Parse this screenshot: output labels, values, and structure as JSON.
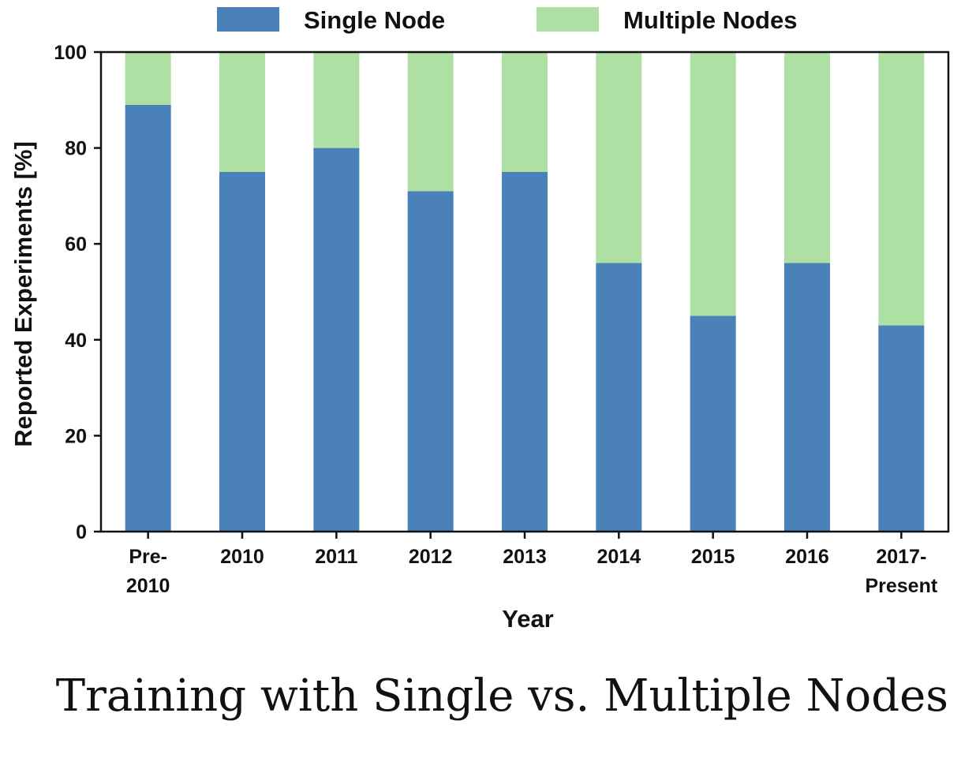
{
  "caption": "Training with Single vs. Multiple Nodes",
  "colors": {
    "single": "#4a81b8",
    "multiple": "#aee0a4"
  },
  "chart_data": {
    "type": "bar",
    "stacked": true,
    "categories": [
      [
        "Pre-",
        "2010"
      ],
      [
        "2010"
      ],
      [
        "2011"
      ],
      [
        "2012"
      ],
      [
        "2013"
      ],
      [
        "2014"
      ],
      [
        "2015"
      ],
      [
        "2016"
      ],
      [
        "2017-",
        "Present"
      ]
    ],
    "series": [
      {
        "name": "Single Node",
        "values": [
          89,
          75,
          80,
          71,
          75,
          56,
          45,
          56,
          43
        ]
      },
      {
        "name": "Multiple Nodes",
        "values": [
          11,
          25,
          20,
          29,
          25,
          44,
          55,
          44,
          57
        ]
      }
    ],
    "xlabel": "Year",
    "ylabel": "Reported Experiments  [%]",
    "ylim": [
      0,
      100
    ],
    "yticks": [
      "0",
      "20",
      "40",
      "60",
      "80",
      "100"
    ],
    "grid": false,
    "legend": "top"
  }
}
